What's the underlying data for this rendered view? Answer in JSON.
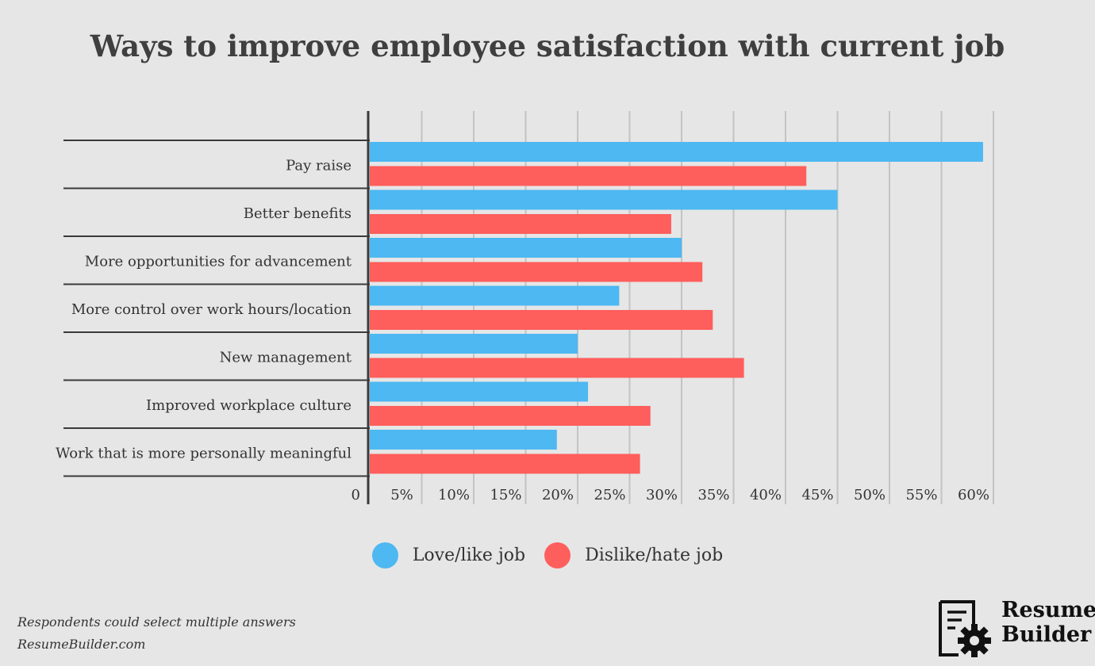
{
  "chart_data": {
    "type": "bar",
    "orientation": "horizontal",
    "title": "Ways to improve employee satisfaction with current job",
    "categories": [
      "Pay raise",
      "Better benefits",
      "More opportunities for advancement",
      "More control over work hours/location",
      "New management",
      "Improved workplace culture",
      "Work that is more personally meaningful"
    ],
    "series": [
      {
        "name": "Love/like job",
        "color": "#4db8f2",
        "values": [
          59,
          45,
          30,
          24,
          20,
          21,
          18
        ]
      },
      {
        "name": "Dislike/hate job",
        "color": "#fe5e5c",
        "values": [
          42,
          29,
          32,
          33,
          36,
          27,
          26
        ]
      }
    ],
    "x_ticks": [
      "0",
      "5%",
      "10%",
      "15%",
      "20%",
      "25%",
      "30%",
      "35%",
      "40%",
      "45%",
      "50%",
      "55%",
      "60%"
    ],
    "xlim": [
      0,
      60
    ],
    "grid": true,
    "legend_position": "bottom"
  },
  "legend": {
    "love_label": "Love/like job",
    "dislike_label": "Dislike/hate job",
    "love_color": "#4db8f2",
    "dislike_color": "#fe5e5c"
  },
  "footnote": {
    "note": "Respondents could select multiple answers",
    "source": "ResumeBuilder.com"
  },
  "logo": {
    "line1": "Resume",
    "line2": "Builder"
  }
}
